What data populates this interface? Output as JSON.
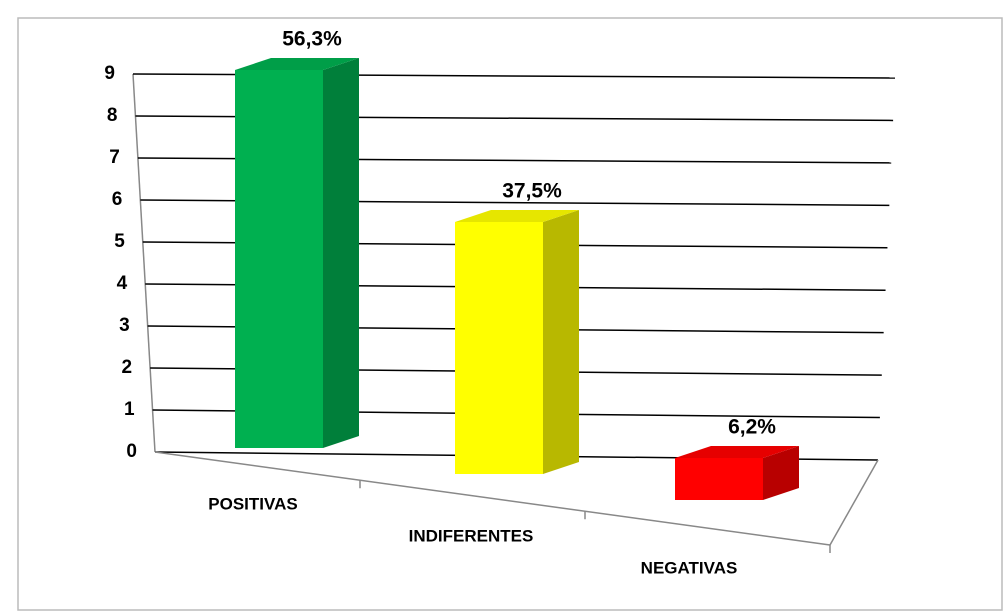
{
  "chart_data": {
    "type": "bar3d",
    "categories": [
      "POSITIVAS",
      "INDIFERENTES",
      "NEGATIVAS"
    ],
    "values": [
      9,
      6,
      1
    ],
    "value_labels": [
      "56,3%",
      "37,5%",
      "6,2%"
    ],
    "colors": [
      "#00b050",
      "#ffff00",
      "#ff0000"
    ],
    "ylim": [
      0,
      9
    ],
    "yticks": [
      0,
      1,
      2,
      3,
      4,
      5,
      6,
      7,
      8,
      9
    ],
    "grid": true
  }
}
